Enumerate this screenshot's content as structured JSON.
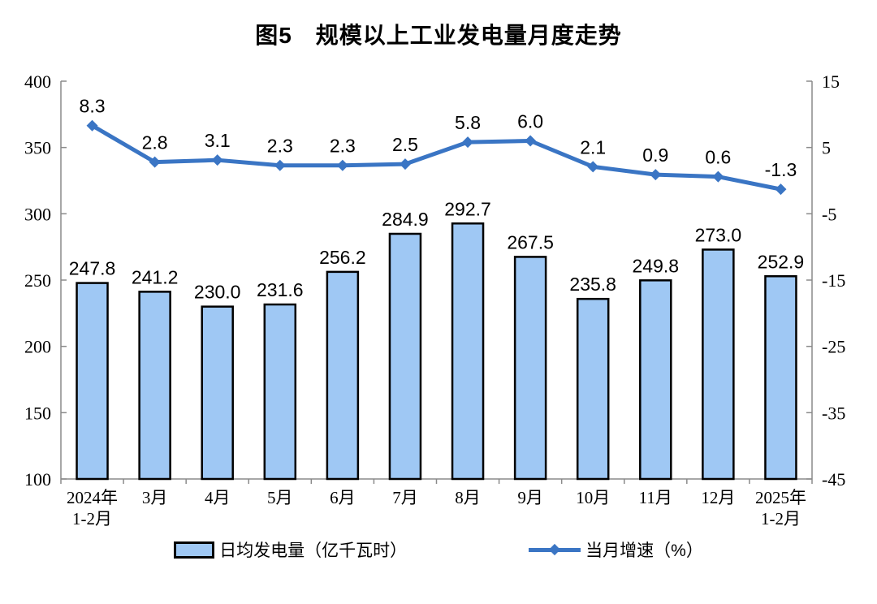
{
  "title": "图5　规模以上工业发电量月度走势",
  "colors": {
    "bar_fill": "#9FC8F4",
    "bar_border": "#000000",
    "line": "#3A75C4",
    "axis": "#8a8a8a",
    "label_text": "#000000"
  },
  "legend": {
    "bar_label": "日均发电量（亿千瓦时）",
    "line_label": "当月增速（%）"
  },
  "chart_data": {
    "type": "combo bar+line, dual y-axis",
    "title": "图5　规模以上工业发电量月度走势",
    "categories": [
      [
        "2024年",
        "1-2月"
      ],
      "3月",
      "4月",
      "5月",
      "6月",
      "7月",
      "8月",
      "9月",
      "10月",
      "11月",
      "12月",
      [
        "2025年",
        "1-2月"
      ]
    ],
    "series": [
      {
        "name": "日均发电量（亿千瓦时）",
        "type": "bar",
        "axis": "left",
        "values": [
          247.8,
          241.2,
          230.0,
          231.6,
          256.2,
          284.9,
          292.7,
          267.5,
          235.8,
          249.8,
          273.0,
          252.9
        ]
      },
      {
        "name": "当月增速（%）",
        "type": "line",
        "axis": "right",
        "marker": "diamond",
        "values": [
          8.3,
          2.8,
          3.1,
          2.3,
          2.3,
          2.5,
          5.8,
          6.0,
          2.1,
          0.9,
          0.6,
          -1.3
        ]
      }
    ],
    "left_axis": {
      "min": 100,
      "max": 400,
      "ticks": [
        400,
        350,
        300,
        250,
        200,
        150,
        100
      ]
    },
    "right_axis": {
      "min": -45,
      "max": 15,
      "ticks": [
        15,
        5,
        -5,
        -15,
        -25,
        -35,
        -45
      ]
    },
    "grid": false,
    "legend_position": "bottom",
    "value_labels": "shown for both series, 1 decimal place"
  }
}
